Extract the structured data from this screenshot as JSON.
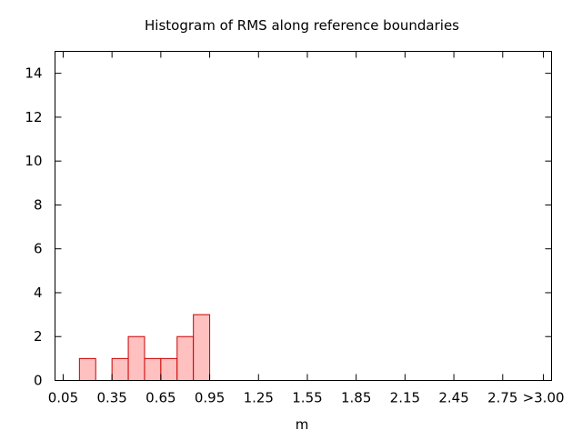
{
  "chart_data": {
    "type": "bar",
    "title": "Histogram of RMS along reference boundaries",
    "xlabel": "m",
    "ylabel": "",
    "xlim": [
      0.0,
      3.05
    ],
    "ylim": [
      0,
      15
    ],
    "x_ticks": [
      {
        "value": 0.05,
        "label": "0.05"
      },
      {
        "value": 0.35,
        "label": "0.35"
      },
      {
        "value": 0.65,
        "label": "0.65"
      },
      {
        "value": 0.95,
        "label": "0.95"
      },
      {
        "value": 1.25,
        "label": "1.25"
      },
      {
        "value": 1.55,
        "label": "1.55"
      },
      {
        "value": 1.85,
        "label": "1.85"
      },
      {
        "value": 2.15,
        "label": "2.15"
      },
      {
        "value": 2.45,
        "label": "2.45"
      },
      {
        "value": 2.75,
        "label": "2.75"
      },
      {
        "value": 3.0,
        "label": ">3.00"
      }
    ],
    "y_ticks": [
      0,
      2,
      4,
      6,
      8,
      10,
      12,
      14
    ],
    "bin_width": 0.1,
    "bars": [
      {
        "x": 0.2,
        "value": 1
      },
      {
        "x": 0.4,
        "value": 1
      },
      {
        "x": 0.5,
        "value": 2
      },
      {
        "x": 0.6,
        "value": 1
      },
      {
        "x": 0.7,
        "value": 1
      },
      {
        "x": 0.8,
        "value": 2
      },
      {
        "x": 0.9,
        "value": 3
      }
    ],
    "bar_fill": "#ffc0c0",
    "bar_stroke": "#cc0000",
    "grid": false,
    "legend": "none"
  }
}
